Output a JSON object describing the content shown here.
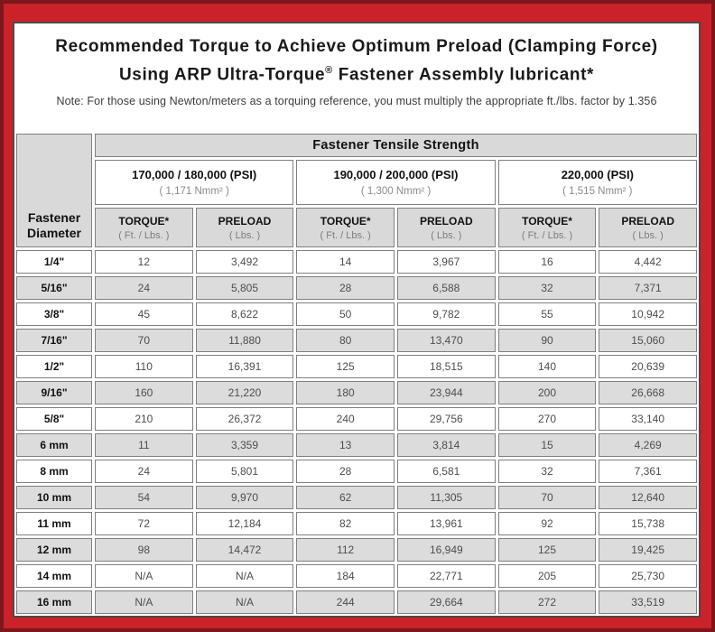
{
  "colors": {
    "frame_outer": "#7b171c",
    "frame_inner": "#cb2128",
    "row_shade": "#dcdcdc",
    "cell_border": "#7f7f7f",
    "panel_border": "#4a4a4a"
  },
  "title": {
    "line1": "Recommended Torque to Achieve Optimum Preload (Clamping Force)",
    "line2_start": "Using ARP Ultra-Torque",
    "line2_sup": "®",
    "line2_end": " Fastener Assembly lubricant*",
    "note": "Note: For those using Newton/meters as a torquing reference, you must multiply the appropriate ft./lbs. factor by 1.356"
  },
  "table": {
    "corner_line1": "Fastener",
    "corner_line2": "Diameter",
    "tensile_header": "Fastener Tensile Strength",
    "strength_groups": [
      {
        "psi": "170,000 / 180,000 (PSI)",
        "nmm": "( 1,171 Nmm² )"
      },
      {
        "psi": "190,000 / 200,000 (PSI)",
        "nmm": "( 1,300 Nmm² )"
      },
      {
        "psi": "220,000 (PSI)",
        "nmm": "( 1,515 Nmm² )"
      }
    ],
    "col_headers": {
      "torque": "TORQUE*",
      "torque_sub": "( Ft. / Lbs. )",
      "preload": "PRELOAD",
      "preload_sub": "( Lbs. )"
    },
    "rows": [
      {
        "diameter": "1/4\"",
        "values": [
          "12",
          "3,492",
          "14",
          "3,967",
          "16",
          "4,442"
        ]
      },
      {
        "diameter": "5/16\"",
        "values": [
          "24",
          "5,805",
          "28",
          "6,588",
          "32",
          "7,371"
        ]
      },
      {
        "diameter": "3/8\"",
        "values": [
          "45",
          "8,622",
          "50",
          "9,782",
          "55",
          "10,942"
        ]
      },
      {
        "diameter": "7/16\"",
        "values": [
          "70",
          "11,880",
          "80",
          "13,470",
          "90",
          "15,060"
        ]
      },
      {
        "diameter": "1/2\"",
        "values": [
          "110",
          "16,391",
          "125",
          "18,515",
          "140",
          "20,639"
        ]
      },
      {
        "diameter": "9/16\"",
        "values": [
          "160",
          "21,220",
          "180",
          "23,944",
          "200",
          "26,668"
        ]
      },
      {
        "diameter": "5/8\"",
        "values": [
          "210",
          "26,372",
          "240",
          "29,756",
          "270",
          "33,140"
        ]
      },
      {
        "diameter": "6 mm",
        "values": [
          "11",
          "3,359",
          "13",
          "3,814",
          "15",
          "4,269"
        ]
      },
      {
        "diameter": "8 mm",
        "values": [
          "24",
          "5,801",
          "28",
          "6,581",
          "32",
          "7,361"
        ]
      },
      {
        "diameter": "10 mm",
        "values": [
          "54",
          "9,970",
          "62",
          "11,305",
          "70",
          "12,640"
        ]
      },
      {
        "diameter": "11 mm",
        "values": [
          "72",
          "12,184",
          "82",
          "13,961",
          "92",
          "15,738"
        ]
      },
      {
        "diameter": "12 mm",
        "values": [
          "98",
          "14,472",
          "112",
          "16,949",
          "125",
          "19,425"
        ]
      },
      {
        "diameter": "14 mm",
        "values": [
          "N/A",
          "N/A",
          "184",
          "22,771",
          "205",
          "25,730"
        ]
      },
      {
        "diameter": "16 mm",
        "values": [
          "N/A",
          "N/A",
          "244",
          "29,664",
          "272",
          "33,519"
        ]
      }
    ]
  }
}
